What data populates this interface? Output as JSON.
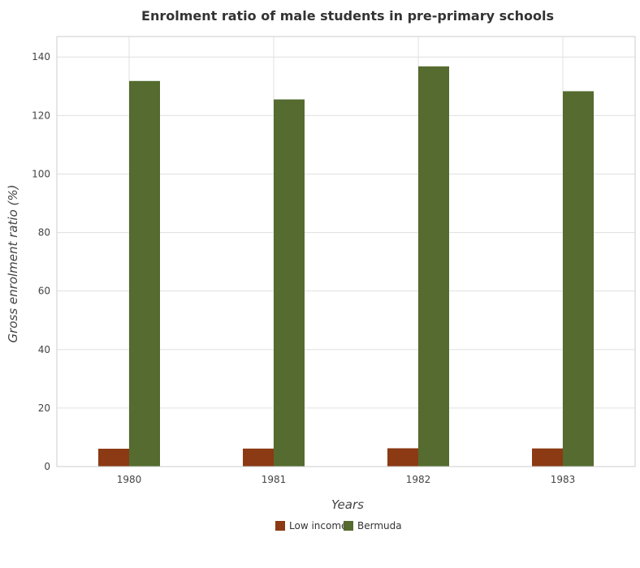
{
  "chart_data": {
    "type": "bar",
    "title": "Enrolment ratio of male students in pre-primary schools",
    "xlabel": "Years",
    "ylabel": "Gross enrolment ratio (%)",
    "categories": [
      "1980",
      "1981",
      "1982",
      "1983"
    ],
    "series": [
      {
        "name": "Low income",
        "color": "#8b3a14",
        "values": [
          6.1,
          6.15,
          6.25,
          6.2
        ]
      },
      {
        "name": "Bermuda",
        "color": "#556b2f",
        "values": [
          131.8,
          125.5,
          136.8,
          128.3
        ]
      }
    ],
    "ylim": [
      0,
      147
    ],
    "yticks": [
      0,
      20,
      40,
      60,
      80,
      100,
      120,
      140
    ],
    "grid": true,
    "legend_position": "bottom-center"
  }
}
